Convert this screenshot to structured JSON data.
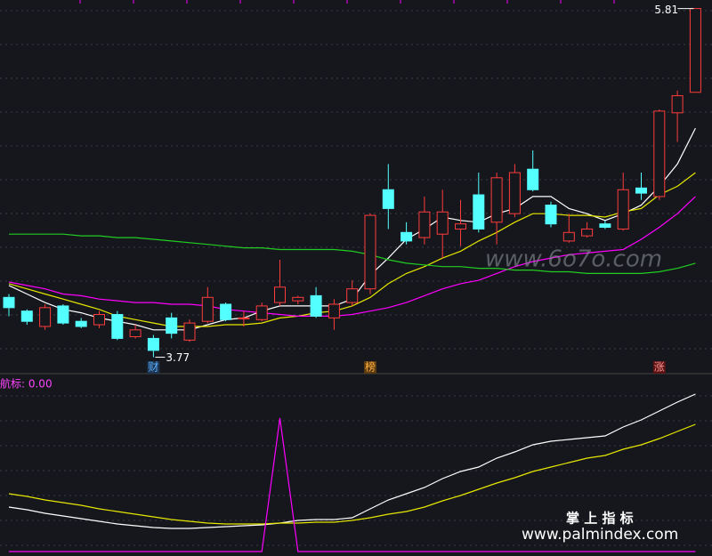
{
  "chart_data": [
    {
      "type": "candlestick",
      "open": [
        4.12,
        4.04,
        3.95,
        4.07,
        3.98,
        3.96,
        4.02,
        3.89,
        3.88,
        4.0,
        3.87,
        3.98,
        4.08,
        4.0,
        3.99,
        4.09,
        4.1,
        4.13,
        4.0,
        4.09,
        4.17,
        4.75,
        4.5,
        4.47,
        4.49,
        4.52,
        4.72,
        4.56,
        4.61,
        4.87,
        4.66,
        4.45,
        4.48,
        4.55,
        4.52,
        4.76,
        4.71,
        5.2,
        5.32
      ],
      "high": [
        4.14,
        4.05,
        4.08,
        4.08,
        4.0,
        4.04,
        4.04,
        3.96,
        3.9,
        4.03,
        3.99,
        4.18,
        4.09,
        4.04,
        4.09,
        4.34,
        4.13,
        4.18,
        4.11,
        4.22,
        4.61,
        4.9,
        4.56,
        4.71,
        4.75,
        4.69,
        4.85,
        4.85,
        4.9,
        4.98,
        4.68,
        4.61,
        4.56,
        4.57,
        4.85,
        4.85,
        5.22,
        5.33,
        5.81
      ],
      "low": [
        4.01,
        3.96,
        3.93,
        3.96,
        3.94,
        3.94,
        3.87,
        3.88,
        3.77,
        3.88,
        3.86,
        3.97,
        3.98,
        3.95,
        3.98,
        4.07,
        4.08,
        4.0,
        3.93,
        4.07,
        4.14,
        4.52,
        4.43,
        4.43,
        4.35,
        4.42,
        4.5,
        4.43,
        4.59,
        4.74,
        4.53,
        4.44,
        4.47,
        4.52,
        4.51,
        4.69,
        4.69,
        5.03,
        5.32
      ],
      "close": [
        4.06,
        3.98,
        4.06,
        3.97,
        3.95,
        4.02,
        3.88,
        3.93,
        3.81,
        3.91,
        3.97,
        4.12,
        3.99,
        4.0,
        4.07,
        4.18,
        4.12,
        4.01,
        4.08,
        4.17,
        4.6,
        4.64,
        4.45,
        4.62,
        4.62,
        4.55,
        4.52,
        4.82,
        4.85,
        4.75,
        4.55,
        4.5,
        4.52,
        4.53,
        4.75,
        4.73,
        5.21,
        5.3,
        5.81
      ],
      "up_color": "#ff3c3c",
      "down_color": "#54ffff",
      "series": [
        {
          "color": "#ffffff",
          "values": [
            4.19,
            4.14,
            4.09,
            4.05,
            4.03,
            4.0,
            3.98,
            3.96,
            3.93,
            3.93,
            3.93,
            3.96,
            3.99,
            4.0,
            4.04,
            4.07,
            4.07,
            4.07,
            4.07,
            4.11,
            4.25,
            4.35,
            4.46,
            4.52,
            4.59,
            4.57,
            4.56,
            4.61,
            4.64,
            4.71,
            4.71,
            4.64,
            4.61,
            4.57,
            4.61,
            4.66,
            4.77,
            4.9,
            5.11
          ]
        },
        {
          "color": "#e6e600",
          "values": [
            4.2,
            4.17,
            4.14,
            4.11,
            4.08,
            4.05,
            4.01,
            3.99,
            3.97,
            3.95,
            3.95,
            3.95,
            3.96,
            3.96,
            3.97,
            4.0,
            4.01,
            4.03,
            4.04,
            4.07,
            4.12,
            4.2,
            4.26,
            4.3,
            4.35,
            4.39,
            4.45,
            4.5,
            4.56,
            4.61,
            4.61,
            4.6,
            4.6,
            4.59,
            4.62,
            4.64,
            4.72,
            4.77,
            4.85
          ]
        },
        {
          "color": "#ff00ff",
          "values": [
            4.21,
            4.19,
            4.17,
            4.14,
            4.13,
            4.11,
            4.1,
            4.09,
            4.09,
            4.08,
            4.08,
            4.07,
            4.05,
            4.04,
            4.03,
            4.02,
            4.01,
            4.01,
            4.01,
            4.02,
            4.04,
            4.06,
            4.09,
            4.13,
            4.17,
            4.2,
            4.22,
            4.26,
            4.3,
            4.33,
            4.35,
            4.37,
            4.38,
            4.39,
            4.4,
            4.46,
            4.53,
            4.61,
            4.71
          ]
        },
        {
          "color": "#22cc22",
          "values": [
            4.49,
            4.49,
            4.49,
            4.49,
            4.48,
            4.48,
            4.47,
            4.47,
            4.46,
            4.45,
            4.44,
            4.43,
            4.42,
            4.41,
            4.41,
            4.4,
            4.4,
            4.4,
            4.4,
            4.39,
            4.37,
            4.34,
            4.32,
            4.31,
            4.3,
            4.3,
            4.29,
            4.29,
            4.28,
            4.28,
            4.27,
            4.27,
            4.26,
            4.26,
            4.26,
            4.26,
            4.27,
            4.29,
            4.32
          ]
        }
      ],
      "ylim": [
        3.7,
        5.86
      ],
      "high_label": 5.81,
      "low_label": 3.77,
      "markers": [
        null,
        null,
        null,
        null,
        null,
        null,
        null,
        null,
        "财",
        null,
        null,
        null,
        null,
        null,
        null,
        null,
        null,
        null,
        null,
        null,
        "榜",
        null,
        null,
        null,
        null,
        null,
        null,
        null,
        null,
        null,
        null,
        null,
        null,
        null,
        null,
        null,
        "涨",
        null,
        null
      ],
      "watermark": "www.6o7o.com"
    },
    {
      "type": "line",
      "title": "航标: 0.00",
      "series": [
        {
          "color": "#ffffff",
          "values": [
            50,
            47,
            43,
            40,
            37,
            34,
            31,
            29,
            27,
            26,
            26,
            27,
            28,
            29,
            30,
            32,
            35,
            36,
            36,
            38,
            48,
            58,
            65,
            72,
            82,
            90,
            95,
            105,
            112,
            120,
            124,
            126,
            128,
            130,
            140,
            148,
            158,
            168,
            177
          ]
        },
        {
          "color": "#e6e600",
          "values": [
            65,
            62,
            58,
            55,
            52,
            48,
            45,
            42,
            39,
            36,
            34,
            32,
            31,
            31,
            31,
            32,
            32,
            33,
            33,
            35,
            38,
            42,
            45,
            50,
            57,
            63,
            70,
            77,
            83,
            90,
            95,
            100,
            105,
            108,
            115,
            120,
            127,
            135,
            143
          ]
        },
        {
          "color": "#ff00ff",
          "values": [
            0,
            0,
            0,
            0,
            0,
            0,
            0,
            0,
            0,
            0,
            0,
            0,
            0,
            0,
            0,
            150,
            0,
            0,
            0,
            0,
            0,
            0,
            0,
            0,
            0,
            0,
            0,
            0,
            0,
            0,
            0,
            0,
            0,
            0,
            0,
            0,
            0,
            0,
            0
          ]
        }
      ],
      "ylim": [
        0,
        195
      ],
      "brand": "掌 上 指 标",
      "site": "www.palmindex.com"
    }
  ]
}
